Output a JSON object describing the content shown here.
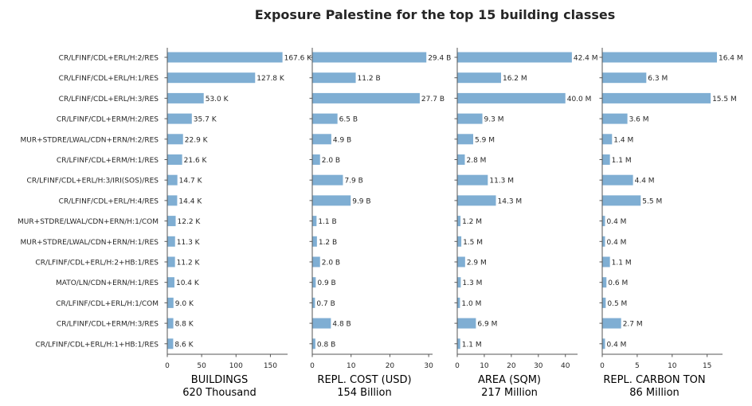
{
  "chart_data": {
    "type": "bar",
    "orientation": "horizontal",
    "title": "Exposure Palestine for the top 15 building classes",
    "color": "#7faed3",
    "categories": [
      "CR/LFINF/CDL+ERL/H:2/RES",
      "CR/LFINF/CDL+ERL/H:1/RES",
      "CR/LFINF/CDL+ERL/H:3/RES",
      "CR/LFINF/CDL+ERM/H:2/RES",
      "MUR+STDRE/LWAL/CDN+ERN/H:2/RES",
      "CR/LFINF/CDL+ERM/H:1/RES",
      "CR/LFINF/CDL+ERL/H:3/IRI(SOS)/RES",
      "CR/LFINF/CDL+ERL/H:4/RES",
      "MUR+STDRE/LWAL/CDN+ERN/H:1/COM",
      "MUR+STDRE/LWAL/CDN+ERN/H:1/RES",
      "CR/LFINF/CDL+ERL/H:2+HB:1/RES",
      "MATO/LN/CDN+ERN/H:1/RES",
      "CR/LFINF/CDL+ERL/H:1/COM",
      "CR/LFINF/CDL+ERM/H:3/RES",
      "CR/LFINF/CDL+ERL/H:1+HB:1/RES"
    ],
    "panels": [
      {
        "name": "BUILDINGS",
        "xlabel": "BUILDINGS",
        "total": "620 Thousand",
        "unit": "Thousand",
        "xlim": [
          0,
          175
        ],
        "xticks": [
          0,
          50,
          100,
          150
        ],
        "values": [
          167.6,
          127.8,
          53.0,
          35.7,
          22.9,
          21.6,
          14.7,
          14.4,
          12.2,
          11.3,
          11.2,
          10.4,
          9.0,
          8.8,
          8.6
        ],
        "labels": [
          "167.6 K",
          "127.8 K",
          "53.0 K",
          "35.7 K",
          "22.9 K",
          "21.6 K",
          "14.7 K",
          "14.4 K",
          "12.2 K",
          "11.3 K",
          "11.2 K",
          "10.4 K",
          "9.0 K",
          "8.8 K",
          "8.6 K"
        ]
      },
      {
        "name": "REPL. COST (USD)",
        "xlabel": "REPL. COST (USD)",
        "total": "154 Billion",
        "unit": "Billion",
        "xlim": [
          0,
          31
        ],
        "xticks": [
          0,
          10,
          20,
          30
        ],
        "values": [
          29.4,
          11.2,
          27.7,
          6.5,
          4.9,
          2.0,
          7.9,
          9.9,
          1.1,
          1.2,
          2.0,
          0.9,
          0.7,
          4.8,
          0.8
        ],
        "labels": [
          "29.4 B",
          "11.2 B",
          "27.7 B",
          "6.5 B",
          "4.9 B",
          "2.0 B",
          "7.9 B",
          "9.9 B",
          "1.1 B",
          "1.2 B",
          "2.0 B",
          "0.9 B",
          "0.7 B",
          "4.8 B",
          "0.8 B"
        ]
      },
      {
        "name": "AREA (SQM)",
        "xlabel": "AREA (SQM)",
        "total": "217 Million",
        "unit": "Million",
        "xlim": [
          0,
          44.5
        ],
        "xticks": [
          0,
          10,
          20,
          30,
          40
        ],
        "values": [
          42.4,
          16.2,
          40.0,
          9.3,
          5.9,
          2.8,
          11.3,
          14.3,
          1.2,
          1.5,
          2.9,
          1.3,
          1.0,
          6.9,
          1.1
        ],
        "labels": [
          "42.4 M",
          "16.2 M",
          "40.0 M",
          "9.3 M",
          "5.9 M",
          "2.8 M",
          "11.3 M",
          "14.3 M",
          "1.2 M",
          "1.5 M",
          "2.9 M",
          "1.3 M",
          "1.0 M",
          "6.9 M",
          "1.1 M"
        ]
      },
      {
        "name": "REPL. CARBON TON",
        "xlabel": "REPL. CARBON TON",
        "total": "86 Million",
        "unit": "Million",
        "xlim": [
          0,
          17.2
        ],
        "xticks": [
          0,
          5,
          10,
          15
        ],
        "values": [
          16.4,
          6.3,
          15.5,
          3.6,
          1.4,
          1.1,
          4.4,
          5.5,
          0.4,
          0.4,
          1.1,
          0.6,
          0.5,
          2.7,
          0.4
        ],
        "labels": [
          "16.4 M",
          "6.3 M",
          "15.5 M",
          "3.6 M",
          "1.4 M",
          "1.1 M",
          "4.4 M",
          "5.5 M",
          "0.4 M",
          "0.4 M",
          "1.1 M",
          "0.6 M",
          "0.5 M",
          "2.7 M",
          "0.4 M"
        ]
      }
    ],
    "grid": false,
    "legend": "none"
  }
}
